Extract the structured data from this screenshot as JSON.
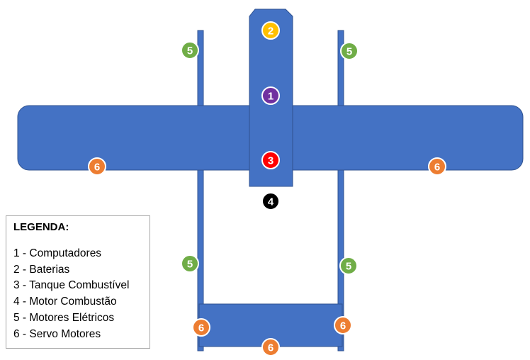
{
  "colors": {
    "aircraft_fill": "#4472C4",
    "aircraft_stroke": "#2F528F",
    "marker_stroke": "#ffffff"
  },
  "markers": [
    {
      "id": "2",
      "label": "2",
      "color": "#FFC000"
    },
    {
      "id": "1",
      "label": "1",
      "color": "#7030A0"
    },
    {
      "id": "3",
      "label": "3",
      "color": "#FF0000"
    },
    {
      "id": "4",
      "label": "4",
      "color": "#000000"
    },
    {
      "id": "5a",
      "label": "5",
      "color": "#70AD47"
    },
    {
      "id": "5b",
      "label": "5",
      "color": "#70AD47"
    },
    {
      "id": "5c",
      "label": "5",
      "color": "#70AD47"
    },
    {
      "id": "5d",
      "label": "5",
      "color": "#70AD47"
    },
    {
      "id": "6a",
      "label": "6",
      "color": "#ED7D31"
    },
    {
      "id": "6b",
      "label": "6",
      "color": "#ED7D31"
    },
    {
      "id": "6c",
      "label": "6",
      "color": "#ED7D31"
    },
    {
      "id": "6d",
      "label": "6",
      "color": "#ED7D31"
    },
    {
      "id": "6e",
      "label": "6",
      "color": "#ED7D31"
    }
  ],
  "legend": {
    "title": "LEGENDA:",
    "items": [
      "1 - Computadores",
      "2 - Baterias",
      "3 - Tanque Combustível",
      "4 - Motor Combustão",
      "5 - Motores Elétricos",
      "6 - Servo Motores"
    ]
  }
}
